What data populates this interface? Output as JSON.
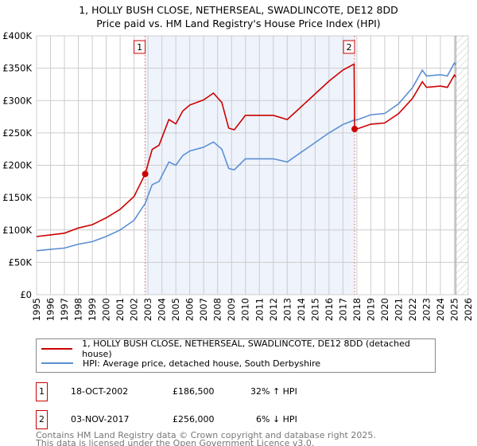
{
  "chart_data": {
    "type": "line",
    "title": "1, HOLLY BUSH CLOSE, NETHERSEAL, SWADLINCOTE, DE12 8DD",
    "subtitle": "Price paid vs. HM Land Registry's House Price Index (HPI)",
    "xlim": [
      1995,
      2026
    ],
    "ylim": [
      0,
      400000
    ],
    "x_ticks": [
      "1995",
      "1996",
      "1997",
      "1998",
      "1999",
      "2000",
      "2001",
      "2002",
      "2003",
      "2004",
      "2005",
      "2006",
      "2007",
      "2008",
      "2009",
      "2010",
      "2011",
      "2012",
      "2013",
      "2014",
      "2015",
      "2016",
      "2017",
      "2018",
      "2019",
      "2020",
      "2021",
      "2022",
      "2023",
      "2024",
      "2025",
      "2026"
    ],
    "y_ticks": [
      {
        "v": 0,
        "label": "£0"
      },
      {
        "v": 50000,
        "label": "£50K"
      },
      {
        "v": 100000,
        "label": "£100K"
      },
      {
        "v": 150000,
        "label": "£150K"
      },
      {
        "v": 200000,
        "label": "£200K"
      },
      {
        "v": 250000,
        "label": "£250K"
      },
      {
        "v": 300000,
        "label": "£300K"
      },
      {
        "v": 350000,
        "label": "£350K"
      },
      {
        "v": 400000,
        "label": "£400K"
      }
    ],
    "grid": true,
    "shaded_period": [
      2002.8,
      2017.84
    ],
    "forecast_from": 2025.1,
    "series": [
      {
        "name": "1, HOLLY BUSH CLOSE, NETHERSEAL, SWADLINCOTE, DE12 8DD (detached house)",
        "color": "#cc0000",
        "x": [
          1995,
          1996,
          1997,
          1998,
          1999,
          2000,
          2001,
          2002,
          2002.8,
          2003.3,
          2003.8,
          2004.5,
          2005,
          2005.5,
          2006,
          2007,
          2007.7,
          2008.3,
          2008.8,
          2009.2,
          2010,
          2011,
          2012,
          2013,
          2014,
          2015,
          2016,
          2017,
          2017.8,
          2017.84,
          2018,
          2019,
          2020,
          2021,
          2022,
          2022.7,
          2023,
          2024,
          2024.5,
          2025,
          2025.1
        ],
        "y": [
          89800,
          92400,
          95000,
          103000,
          108200,
          118800,
          132000,
          151800,
          186500,
          224400,
          231000,
          270600,
          264000,
          283800,
          293000,
          301000,
          311500,
          297000,
          257400,
          254800,
          277200,
          277200,
          277200,
          270600,
          290400,
          310200,
          330000,
          347200,
          356400,
          256000,
          256000,
          263500,
          265400,
          279700,
          303400,
          329000,
          320400,
          322300,
          320400,
          339400,
          336500
        ]
      },
      {
        "name": "HPI: Average price, detached house, South Derbyshire",
        "color": "#5b8fd4",
        "x": [
          1995,
          1996,
          1997,
          1998,
          1999,
          2000,
          2001,
          2002,
          2002.8,
          2003.3,
          2003.8,
          2004.5,
          2005,
          2005.5,
          2006,
          2007,
          2007.7,
          2008.3,
          2008.8,
          2009.2,
          2010,
          2011,
          2012,
          2013,
          2014,
          2015,
          2016,
          2017,
          2017.84,
          2018,
          2019,
          2020,
          2021,
          2022,
          2022.7,
          2023,
          2024,
          2024.5,
          2025,
          2025.1
        ],
        "y": [
          68000,
          70000,
          72000,
          78000,
          82000,
          90000,
          100000,
          115000,
          141000,
          170000,
          175000,
          205000,
          200000,
          215000,
          222000,
          228000,
          236000,
          225000,
          195000,
          193000,
          210000,
          210000,
          210000,
          205000,
          220000,
          235000,
          250000,
          263000,
          270000,
          270000,
          278000,
          280000,
          295000,
          320000,
          347000,
          338000,
          340000,
          338000,
          358000,
          355000
        ]
      }
    ],
    "sales": [
      {
        "label": "1",
        "x": 2002.8,
        "y": 186500
      },
      {
        "label": "2",
        "x": 2017.84,
        "y": 256000
      }
    ]
  },
  "legend": {
    "red": "1, HOLLY BUSH CLOSE, NETHERSEAL, SWADLINCOTE, DE12 8DD (detached house)",
    "blue": "HPI: Average price, detached house, South Derbyshire"
  },
  "transactions": [
    {
      "n": "1",
      "date": "18-OCT-2002",
      "price": "£186,500",
      "hpi": "32% ↑ HPI"
    },
    {
      "n": "2",
      "date": "03-NOV-2017",
      "price": "£256,000",
      "hpi": "6% ↓ HPI"
    }
  ],
  "footer": {
    "line1": "Contains HM Land Registry data © Crown copyright and database right 2025.",
    "line2": "This data is licensed under the Open Government Licence v3.0."
  }
}
